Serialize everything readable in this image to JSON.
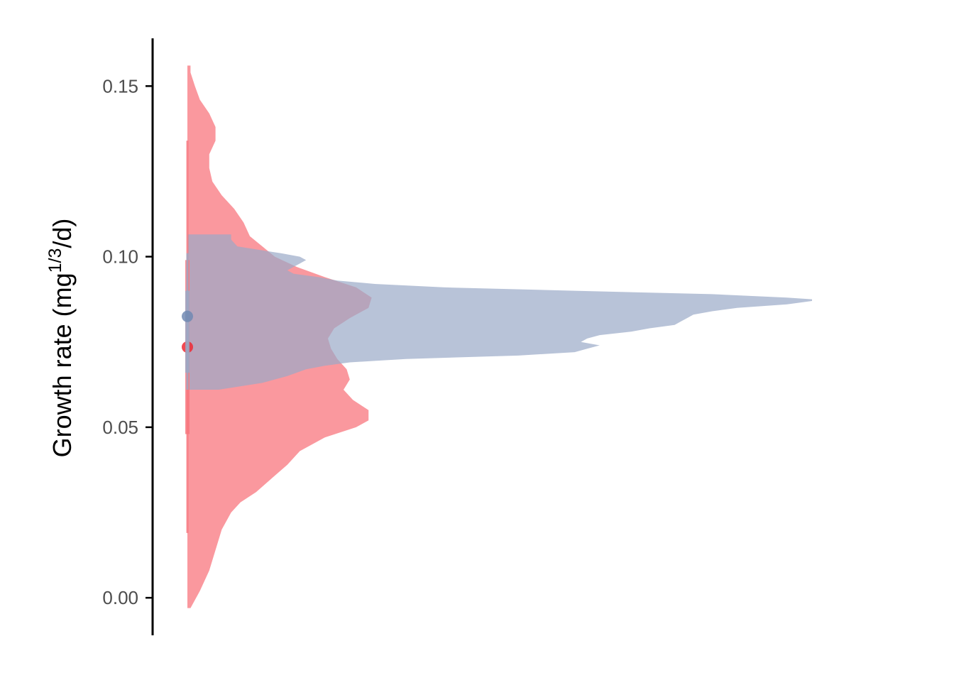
{
  "chart_data": {
    "type": "half-violin",
    "title": "",
    "xlabel": "",
    "ylabel": {
      "base": "Growth rate (mg",
      "superscript": "1/3",
      "tail": "/d)"
    },
    "ylim": [
      -0.011,
      0.164
    ],
    "yticks": [
      0.0,
      0.05,
      0.1,
      0.15
    ],
    "ytick_labels": [
      "0.00",
      "0.05",
      "0.10",
      "0.15"
    ],
    "grid": false,
    "legend": "none",
    "series": [
      {
        "color": "#f8767d",
        "fill_opacity": 0.75,
        "density": {
          "y": [
            -0.003,
            0.002,
            0.008,
            0.014,
            0.02,
            0.025,
            0.028,
            0.031,
            0.035,
            0.039,
            0.043,
            0.047,
            0.05,
            0.052,
            0.055,
            0.058,
            0.061,
            0.064,
            0.067,
            0.07,
            0.073,
            0.076,
            0.079,
            0.082,
            0.085,
            0.088,
            0.091,
            0.094,
            0.097,
            0.1,
            0.103,
            0.106,
            0.11,
            0.114,
            0.118,
            0.122,
            0.126,
            0.13,
            0.134,
            0.138,
            0.142,
            0.146,
            0.15,
            0.154,
            0.156
          ],
          "width": [
            0.005,
            0.02,
            0.035,
            0.045,
            0.055,
            0.07,
            0.085,
            0.11,
            0.135,
            0.16,
            0.18,
            0.22,
            0.27,
            0.29,
            0.29,
            0.265,
            0.25,
            0.26,
            0.255,
            0.24,
            0.23,
            0.225,
            0.235,
            0.26,
            0.29,
            0.295,
            0.27,
            0.22,
            0.175,
            0.14,
            0.12,
            0.1,
            0.09,
            0.075,
            0.055,
            0.04,
            0.035,
            0.035,
            0.045,
            0.045,
            0.035,
            0.02,
            0.012,
            0.005,
            0.005
          ]
        },
        "mean": 0.0735,
        "interval_inner": [
          0.048,
          0.099
        ],
        "interval_outer": [
          0.019,
          0.134
        ]
      },
      {
        "color": "#9aaac7",
        "fill_opacity": 0.7,
        "density": {
          "y": [
            0.061,
            0.063,
            0.065,
            0.067,
            0.068,
            0.069,
            0.07,
            0.071,
            0.072,
            0.073,
            0.074,
            0.075,
            0.076,
            0.077,
            0.078,
            0.079,
            0.08,
            0.081,
            0.082,
            0.083,
            0.084,
            0.085,
            0.086,
            0.087,
            0.0875,
            0.088,
            0.089,
            0.09,
            0.091,
            0.092,
            0.093,
            0.094,
            0.095,
            0.096,
            0.097,
            0.098,
            0.099,
            0.1,
            0.101,
            0.103,
            0.105,
            0.1065
          ],
          "width": [
            0.05,
            0.12,
            0.16,
            0.19,
            0.22,
            0.26,
            0.35,
            0.53,
            0.62,
            0.64,
            0.66,
            0.63,
            0.64,
            0.66,
            0.71,
            0.74,
            0.78,
            0.79,
            0.8,
            0.81,
            0.84,
            0.88,
            0.96,
            1.0,
            1.0,
            0.96,
            0.84,
            0.62,
            0.41,
            0.3,
            0.24,
            0.21,
            0.17,
            0.16,
            0.17,
            0.18,
            0.19,
            0.18,
            0.15,
            0.08,
            0.07,
            0.07
          ]
        },
        "mean": 0.0825,
        "interval_inner": [
          0.066,
          0.09
        ],
        "interval_outer": [
          0.061,
          0.101
        ]
      }
    ]
  }
}
